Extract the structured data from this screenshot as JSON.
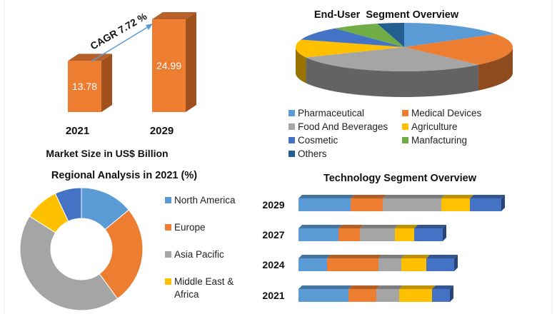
{
  "colors": {
    "blue": "#5b9bd5",
    "orange": "#ed7d31",
    "gray": "#a5a5a5",
    "yellow": "#ffc000",
    "darkblue": "#4472c4",
    "green": "#70ad47",
    "navy": "#255e91"
  },
  "chart_data": [
    {
      "type": "bar",
      "title": "",
      "xlabel": "Market Size in US$ Billion",
      "categories": [
        "2021",
        "2029"
      ],
      "values": [
        13.78,
        24.99
      ],
      "data_labels": [
        "13.78",
        "24.99"
      ],
      "annotation": "CAGR 7.72 %",
      "style": "3d-column"
    },
    {
      "type": "pie",
      "title": "End-User  Segment Overview",
      "style": "3d",
      "legend": "bottom",
      "categories": [
        "Pharmaceutical",
        "Medical Devices",
        "Food And Beverages",
        "Agriculture",
        "Cosmetic",
        "Manfacturing",
        "Others"
      ],
      "values": [
        16,
        22,
        30,
        12,
        9,
        7,
        4
      ],
      "colors": [
        "#5b9bd5",
        "#ed7d31",
        "#a5a5a5",
        "#ffc000",
        "#4472c4",
        "#70ad47",
        "#255e91"
      ]
    },
    {
      "type": "pie",
      "style": "donut",
      "title": "Regional Analysis in 2021 (%)",
      "legend": "right",
      "categories": [
        "North America",
        "Europe",
        "Asia Pacific",
        "Middle East & Africa",
        ""
      ],
      "values": [
        14,
        26,
        44,
        9,
        7
      ],
      "colors": [
        "#5b9bd5",
        "#ed7d31",
        "#a5a5a5",
        "#ffc000",
        "#4472c4"
      ]
    },
    {
      "type": "bar",
      "style": "3d-stacked-horizontal",
      "title": "Technology Segment Overview",
      "categories": [
        "2029",
        "2027",
        "2024",
        "2021"
      ],
      "series": [
        {
          "values": [
            73,
            56,
            40,
            70
          ]
        },
        {
          "values": [
            45,
            30,
            72,
            39
          ]
        },
        {
          "values": [
            82,
            49,
            32,
            32
          ]
        },
        {
          "values": [
            40,
            27,
            35,
            46
          ]
        },
        {
          "values": [
            44,
            40,
            39,
            25
          ]
        }
      ],
      "colors": [
        "#5b9bd5",
        "#ed7d31",
        "#a5a5a5",
        "#ffc000",
        "#4472c4"
      ]
    }
  ]
}
